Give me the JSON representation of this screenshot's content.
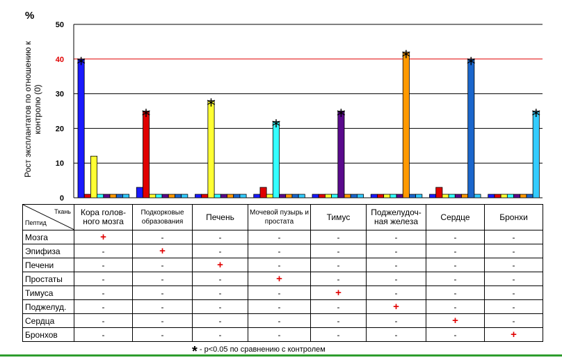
{
  "chart_data": {
    "type": "bar",
    "unit_label": "%",
    "ylabel": "Рост эксплантатов по отношению к контролю (0)",
    "ylim": [
      0,
      50
    ],
    "yticks": [
      "0",
      "10",
      "20",
      "30",
      "40",
      "50"
    ],
    "reference_line": 40,
    "reference_color": "#e00000",
    "series_colors": [
      "#1a1aff",
      "#e00000",
      "#ffff33",
      "#33ffff",
      "#5a0a8c",
      "#ff9900",
      "#1a66cc",
      "#33ccff"
    ],
    "categories": [
      "Кора голов-ного мозга",
      "Подкорковые образования",
      "Печень",
      "Мочевой пузырь и простата",
      "Тимус",
      "Поджелудоч-ная железа",
      "Сердце",
      "Бронхи"
    ],
    "groups": [
      {
        "values": [
          40,
          1,
          12,
          1,
          1,
          1,
          1,
          1
        ],
        "star": 0
      },
      {
        "values": [
          3,
          25,
          1,
          1,
          1,
          1,
          1,
          1
        ],
        "star": 1
      },
      {
        "values": [
          1,
          1,
          28,
          1,
          1,
          1,
          1,
          1
        ],
        "star": 2
      },
      {
        "values": [
          1,
          3,
          1,
          22,
          1,
          1,
          1,
          1
        ],
        "star": 3
      },
      {
        "values": [
          1,
          1,
          1,
          1,
          25,
          1,
          1,
          1
        ],
        "star": 4
      },
      {
        "values": [
          1,
          1,
          1,
          1,
          1,
          42,
          1,
          1
        ],
        "star": 5
      },
      {
        "values": [
          1,
          3,
          1,
          1,
          1,
          1,
          40,
          1
        ],
        "star": 6
      },
      {
        "values": [
          1,
          1,
          1,
          1,
          1,
          1,
          1,
          25
        ],
        "star": 7
      }
    ]
  },
  "table": {
    "corner_tissue": "Ткань",
    "corner_peptide": "Пептид",
    "headers": [
      "Кора голов-ного мозга",
      "Подкорковые образования",
      "Печень",
      "Мочевой пузырь и простата",
      "Тимус",
      "Поджелудоч-ная железа",
      "Сердце",
      "Бронхи"
    ],
    "rows": [
      {
        "label": "Мозга",
        "cells": [
          "+",
          "-",
          "-",
          "-",
          "-",
          "-",
          "-",
          "-"
        ]
      },
      {
        "label": "Эпифиза",
        "cells": [
          "-",
          "+",
          "-",
          "-",
          "-",
          "-",
          "-",
          "-"
        ]
      },
      {
        "label": "Печени",
        "cells": [
          "-",
          "-",
          "+",
          "-",
          "-",
          "-",
          "-",
          "-"
        ]
      },
      {
        "label": "Простаты",
        "cells": [
          "-",
          "-",
          "-",
          "+",
          "-",
          "-",
          "-",
          "-"
        ]
      },
      {
        "label": "Тимуса",
        "cells": [
          "-",
          "-",
          "-",
          "-",
          "+",
          "-",
          "-",
          "-"
        ]
      },
      {
        "label": "Поджелуд.",
        "cells": [
          "-",
          "-",
          "-",
          "-",
          "-",
          "+",
          "-",
          "-"
        ]
      },
      {
        "label": "Сердца",
        "cells": [
          "-",
          "-",
          "-",
          "-",
          "-",
          "-",
          "+",
          "-"
        ]
      },
      {
        "label": "Бронхов",
        "cells": [
          "-",
          "-",
          "-",
          "-",
          "-",
          "-",
          "-",
          "+"
        ]
      }
    ]
  },
  "footnote": {
    "star": "*",
    "text": "- p<0.05 по сравнению с контролем"
  }
}
